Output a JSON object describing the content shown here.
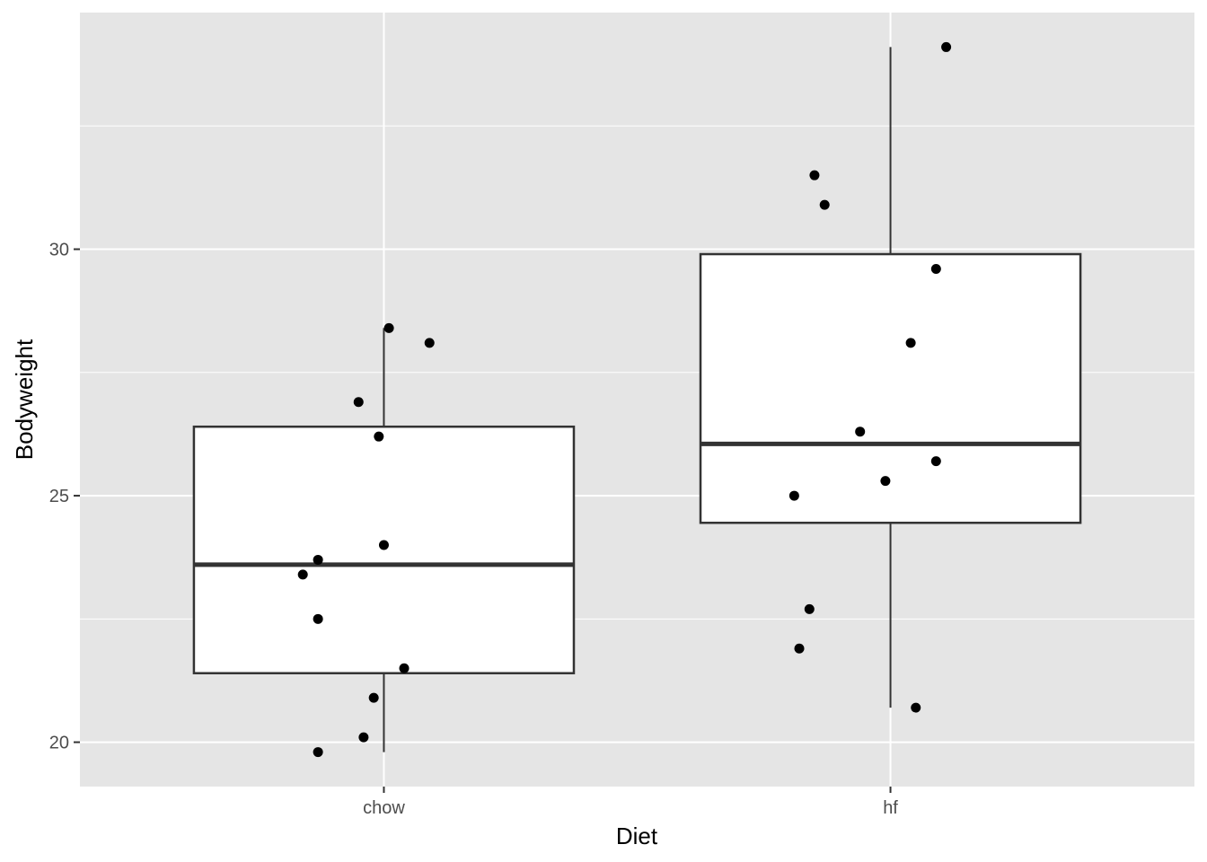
{
  "chart_data": {
    "type": "boxplot",
    "title": "",
    "xlabel": "Diet",
    "ylabel": "Bodyweight",
    "categories": [
      "chow",
      "hf"
    ],
    "y_ticks": [
      20,
      25,
      30
    ],
    "ylim": [
      19.1,
      34.8
    ],
    "grid": true,
    "legend": "none",
    "colors": {
      "panel_background": "#e5e5e5",
      "grid": "#ffffff",
      "box_fill": "#ffffff",
      "box_line": "#333333",
      "point": "#000000",
      "tick_label": "#4d4d4d"
    },
    "boxes": [
      {
        "category": "chow",
        "lower_whisker": 19.8,
        "q1": 21.4,
        "median": 23.6,
        "q3": 26.4,
        "upper_whisker": 28.4
      },
      {
        "category": "hf",
        "lower_whisker": 20.7,
        "q1": 24.45,
        "median": 26.05,
        "q3": 29.9,
        "upper_whisker": 34.1
      }
    ],
    "points": [
      {
        "category": "chow",
        "jitter": -0.16,
        "value": 23.4
      },
      {
        "category": "chow",
        "jitter": -0.13,
        "value": 23.7
      },
      {
        "category": "chow",
        "jitter": -0.13,
        "value": 22.5
      },
      {
        "category": "chow",
        "jitter": -0.13,
        "value": 19.8
      },
      {
        "category": "chow",
        "jitter": -0.05,
        "value": 26.9
      },
      {
        "category": "chow",
        "jitter": -0.04,
        "value": 20.1
      },
      {
        "category": "chow",
        "jitter": -0.02,
        "value": 20.9
      },
      {
        "category": "chow",
        "jitter": -0.01,
        "value": 26.2
      },
      {
        "category": "chow",
        "jitter": 0.0,
        "value": 24.0
      },
      {
        "category": "chow",
        "jitter": 0.01,
        "value": 28.4
      },
      {
        "category": "chow",
        "jitter": 0.04,
        "value": 21.5
      },
      {
        "category": "chow",
        "jitter": 0.09,
        "value": 28.1
      },
      {
        "category": "hf",
        "jitter": -0.19,
        "value": 25.0
      },
      {
        "category": "hf",
        "jitter": -0.18,
        "value": 21.9
      },
      {
        "category": "hf",
        "jitter": -0.16,
        "value": 22.7
      },
      {
        "category": "hf",
        "jitter": -0.15,
        "value": 31.5
      },
      {
        "category": "hf",
        "jitter": -0.13,
        "value": 30.9
      },
      {
        "category": "hf",
        "jitter": -0.06,
        "value": 26.3
      },
      {
        "category": "hf",
        "jitter": -0.01,
        "value": 25.3
      },
      {
        "category": "hf",
        "jitter": 0.04,
        "value": 28.1
      },
      {
        "category": "hf",
        "jitter": 0.05,
        "value": 20.7
      },
      {
        "category": "hf",
        "jitter": 0.09,
        "value": 29.6
      },
      {
        "category": "hf",
        "jitter": 0.09,
        "value": 25.7
      },
      {
        "category": "hf",
        "jitter": 0.11,
        "value": 34.1
      }
    ]
  }
}
